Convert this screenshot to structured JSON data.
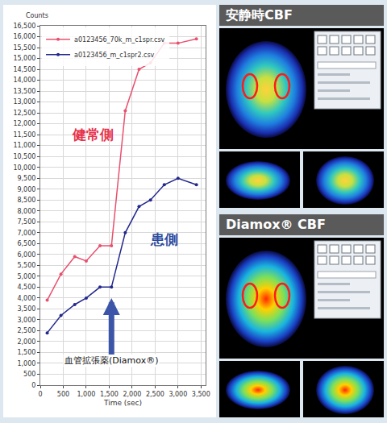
{
  "chart_data": {
    "type": "line",
    "x_label": "Time (sec)",
    "y_label": "Counts",
    "xlim": [
      0,
      3600
    ],
    "xticks": [
      0,
      500,
      {
        "value": 1000,
        "label": "1,000"
      },
      {
        "value": 1500,
        "label": "1,500"
      },
      {
        "value": 2000,
        "label": "2,000"
      },
      {
        "value": 2500,
        "label": "2,500"
      },
      {
        "value": 3000,
        "label": "3,000"
      },
      {
        "value": 3500,
        "label": "3,500"
      }
    ],
    "ylim": [
      0,
      16500
    ],
    "yticks": [
      0,
      500,
      {
        "value": 1000,
        "label": "1,000"
      },
      {
        "value": 1500,
        "label": "1,500"
      },
      {
        "value": 2000,
        "label": "2,000"
      },
      {
        "value": 2500,
        "label": "2,500"
      },
      {
        "value": 3000,
        "label": "3,000"
      },
      {
        "value": 3500,
        "label": "3,500"
      },
      {
        "value": 4000,
        "label": "4,000"
      },
      {
        "value": 4500,
        "label": "4,500"
      },
      {
        "value": 5000,
        "label": "5,000"
      },
      {
        "value": 5500,
        "label": "5,500"
      },
      {
        "value": 6000,
        "label": "6,000"
      },
      {
        "value": 6500,
        "label": "6,500"
      },
      {
        "value": 7000,
        "label": "7,000"
      },
      {
        "value": 7500,
        "label": "7,500"
      },
      {
        "value": 8000,
        "label": "8,000"
      },
      {
        "value": 8500,
        "label": "8,500"
      },
      {
        "value": 9000,
        "label": "9,000"
      },
      {
        "value": 9500,
        "label": "9,500"
      },
      {
        "value": 10000,
        "label": "10,000"
      },
      {
        "value": 10500,
        "label": "10,500"
      },
      {
        "value": 11000,
        "label": "11,000"
      },
      {
        "value": 11500,
        "label": "11,500"
      },
      {
        "value": 12000,
        "label": "12,000"
      },
      {
        "value": 12500,
        "label": "12,500"
      },
      {
        "value": 13000,
        "label": "13,000"
      },
      {
        "value": 13500,
        "label": "13,500"
      },
      {
        "value": 14000,
        "label": "14,000"
      },
      {
        "value": 14500,
        "label": "14,500"
      },
      {
        "value": 15000,
        "label": "15,000"
      },
      {
        "value": 15500,
        "label": "15,500"
      },
      {
        "value": 16000,
        "label": "16,000"
      },
      {
        "value": 16500,
        "label": "16,500"
      }
    ],
    "grid": true,
    "legend": "top-left",
    "marker": "circle",
    "x": [
      150,
      450,
      750,
      1000,
      1300,
      1550,
      1850,
      2150,
      2400,
      2700,
      3000,
      3400
    ],
    "series": [
      {
        "name": "a0123456_70k_m_c1spr.csv",
        "color": "#e8506e",
        "values": [
          3900,
          5100,
          5900,
          5700,
          6400,
          6400,
          12600,
          14500,
          14800,
          15700,
          15700,
          15900
        ]
      },
      {
        "name": "a0123456_m_c1spr2.csv",
        "color": "#23288c",
        "values": [
          2400,
          3200,
          3700,
          4000,
          4500,
          4500,
          7000,
          8200,
          8500,
          9200,
          9500,
          9200
        ]
      }
    ],
    "annotations": [
      {
        "text": "健常側",
        "x": 1150,
        "y": 11500,
        "color": "#e8304a"
      },
      {
        "text": "患側",
        "x": 2700,
        "y": 6700,
        "color": "#2b4aa0"
      },
      {
        "text": "血管拡張薬(Diamox®)",
        "x": 1550,
        "y": 4000,
        "color": "#111111",
        "marker": "arrow"
      }
    ]
  },
  "panels": [
    {
      "title": "安静時CBF"
    },
    {
      "title": "Diamox® CBF"
    }
  ]
}
